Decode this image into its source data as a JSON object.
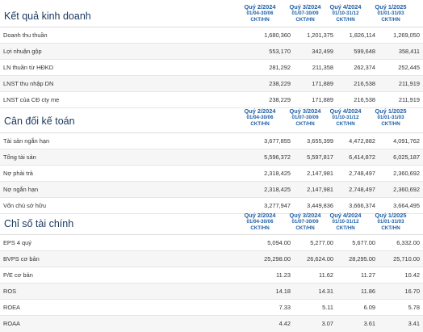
{
  "sections": [
    {
      "title": "Kết quả kinh doanh",
      "columns": [
        {
          "quarter": "Quý 2/2024",
          "range": "01/04-30/06",
          "basis": "CKT/HN"
        },
        {
          "quarter": "Quý 3/2024",
          "range": "01/07-30/09",
          "basis": "CKT/HN"
        },
        {
          "quarter": "Quý 4/2024",
          "range": "01/10-31/12",
          "basis": "CKT/HN"
        },
        {
          "quarter": "Quý 1/2025",
          "range": "01/01-31/03",
          "basis": "CKT/HN"
        }
      ],
      "rows": [
        {
          "label": "Doanh thu thuần",
          "values": [
            "1,680,360",
            "1,201,375",
            "1,826,114",
            "1,269,050"
          ]
        },
        {
          "label": "Lợi nhuận gộp",
          "values": [
            "553,170",
            "342,499",
            "599,648",
            "358,411"
          ]
        },
        {
          "label": "LN thuần từ HĐKD",
          "values": [
            "281,292",
            "211,358",
            "262,374",
            "252,445"
          ]
        },
        {
          "label": "LNST thu nhập DN",
          "values": [
            "238,229",
            "171,889",
            "216,538",
            "211,919"
          ]
        },
        {
          "label": "LNST của CĐ cty mẹ",
          "values": [
            "238,229",
            "171,889",
            "216,538",
            "211,919"
          ]
        }
      ]
    },
    {
      "title": "Cân đối kế toán",
      "columns": [
        {
          "quarter": "Quý 2/2024",
          "range": "01/04-30/06",
          "basis": "CKT/HN"
        },
        {
          "quarter": "Quý 3/2024",
          "range": "01/07-30/09",
          "basis": "CKT/HN"
        },
        {
          "quarter": "Quý 4/2024",
          "range": "01/10-31/12",
          "basis": "CKT/HN"
        },
        {
          "quarter": "Quý 1/2025",
          "range": "01/01-31/03",
          "basis": "CKT/HN"
        }
      ],
      "rows": [
        {
          "label": "Tài sản ngắn hạn",
          "values": [
            "3,677,855",
            "3,655,399",
            "4,472,882",
            "4,091,762"
          ]
        },
        {
          "label": "Tổng tài sản",
          "values": [
            "5,596,372",
            "5,597,817",
            "6,414,872",
            "6,025,187"
          ]
        },
        {
          "label": "Nợ phải trả",
          "values": [
            "2,318,425",
            "2,147,981",
            "2,748,497",
            "2,360,692"
          ]
        },
        {
          "label": "Nợ ngắn hạn",
          "values": [
            "2,318,425",
            "2,147,981",
            "2,748,497",
            "2,360,692"
          ]
        },
        {
          "label": "Vốn chủ sở hữu",
          "values": [
            "3,277,947",
            "3,449,836",
            "3,666,374",
            "3,664,495"
          ]
        }
      ]
    },
    {
      "title": "Chỉ số tài chính",
      "columns": [
        {
          "quarter": "Quý 2/2024",
          "range": "01/04-30/06",
          "basis": "CKT/HN"
        },
        {
          "quarter": "Quý 3/2024",
          "range": "01/07-30/09",
          "basis": "CKT/HN"
        },
        {
          "quarter": "Quý 4/2024",
          "range": "01/10-31/12",
          "basis": "CKT/HN"
        },
        {
          "quarter": "Quý 1/2025",
          "range": "01/01-31/03",
          "basis": "CKT/HN"
        }
      ],
      "rows": [
        {
          "label": "EPS 4 quý",
          "values": [
            "5,094.00",
            "5,277.00",
            "5,677.00",
            "6,332.00"
          ]
        },
        {
          "label": "BVPS cơ bản",
          "values": [
            "25,298.00",
            "26,624.00",
            "28,295.00",
            "25,710.00"
          ]
        },
        {
          "label": "P/E cơ bản",
          "values": [
            "11.23",
            "11.62",
            "11.27",
            "10.42"
          ]
        },
        {
          "label": "ROS",
          "values": [
            "14.18",
            "14.31",
            "11.86",
            "16.70"
          ]
        },
        {
          "label": "ROEA",
          "values": [
            "7.33",
            "5.11",
            "6.09",
            "5.78"
          ]
        },
        {
          "label": "ROAA",
          "values": [
            "4.42",
            "3.07",
            "3.61",
            "3.41"
          ]
        }
      ]
    }
  ]
}
